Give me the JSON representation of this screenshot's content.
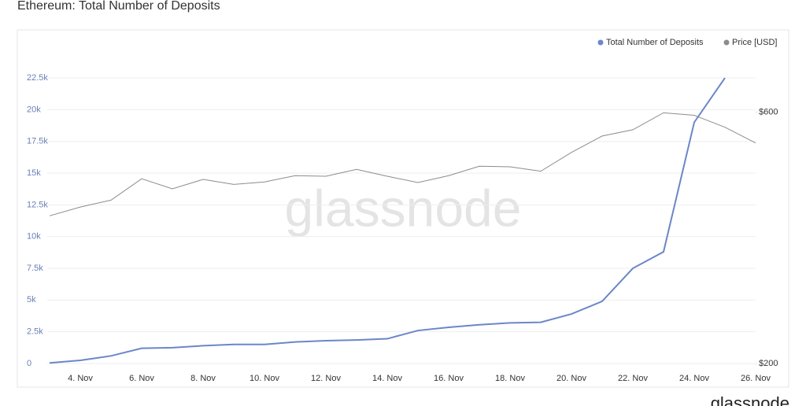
{
  "chart_data": {
    "type": "line",
    "title": "Ethereum: Total Number of Deposits",
    "watermark": "glassnode",
    "footer_logo": "glassnode",
    "categories": [
      null,
      "4. Nov",
      null,
      "6. Nov",
      null,
      "8. Nov",
      null,
      "10. Nov",
      null,
      "12. Nov",
      null,
      "14. Nov",
      null,
      "16. Nov",
      null,
      "18. Nov",
      null,
      "20. Nov",
      null,
      "22. Nov",
      null,
      "24. Nov",
      null,
      "26. Nov"
    ],
    "series": [
      {
        "name": "Total Number of Deposits",
        "color": "#6b86c9",
        "axis": "y",
        "values": [
          50,
          250,
          600,
          1200,
          1250,
          1400,
          1500,
          1500,
          1700,
          1800,
          1850,
          1950,
          2600,
          2850,
          3050,
          3200,
          3250,
          3900,
          4900,
          7500,
          8800,
          19000,
          22500,
          null
        ]
      },
      {
        "name": "Price [USD]",
        "color": "#8c8c8c",
        "axis": "y2",
        "values": [
          435,
          449,
          460,
          494,
          478,
          493,
          485,
          489,
          499,
          498,
          509,
          498,
          488,
          499,
          514,
          513,
          506,
          536,
          562,
          572,
          599,
          595,
          576,
          551
        ]
      }
    ],
    "ylim": [
      0,
      25000
    ],
    "yticks": [
      0,
      {
        "value": 2500,
        "label": "2.5k"
      },
      {
        "value": 5000,
        "label": "5k"
      },
      {
        "value": 7500,
        "label": "7.5k"
      },
      {
        "value": 10000,
        "label": "10k"
      },
      {
        "value": 12500,
        "label": "12.5k"
      },
      {
        "value": 15000,
        "label": "15k"
      },
      {
        "value": 17500,
        "label": "17.5k"
      },
      {
        "value": 20000,
        "label": "20k"
      },
      {
        "value": 22500,
        "label": "22.5k"
      }
    ],
    "y2lim": [
      200,
      705
    ],
    "y2ticks": [
      {
        "value": 200,
        "label": "$200"
      },
      {
        "value": 600,
        "label": "$600"
      }
    ],
    "grid": true,
    "legend": "top-right"
  }
}
